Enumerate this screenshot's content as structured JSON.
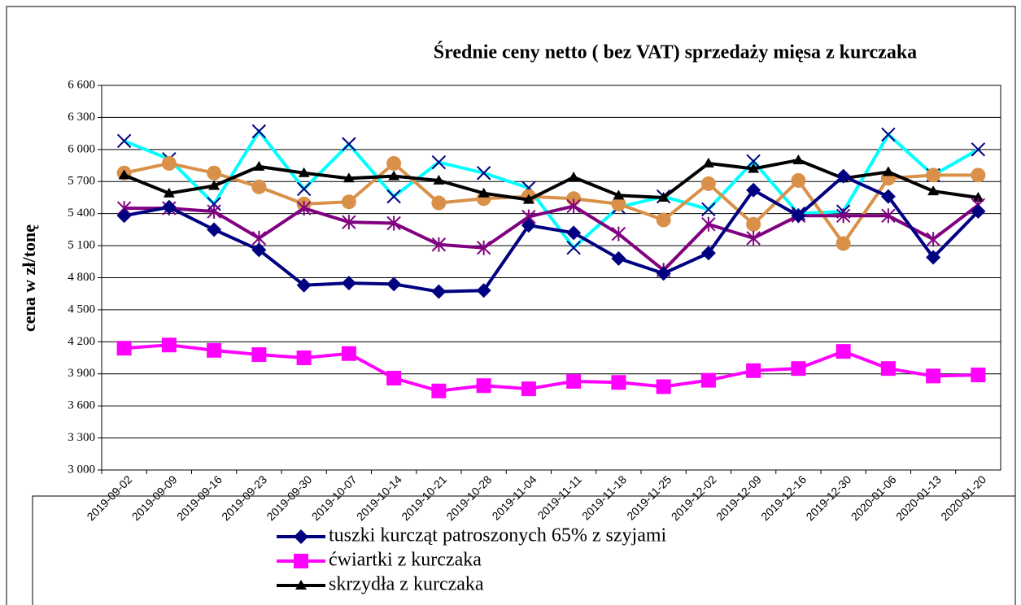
{
  "chart_data": {
    "type": "line",
    "title": "Średnie ceny netto ( bez VAT) sprzedaży mięsa z kurczaka",
    "y_label": "cena w zł/tonę",
    "categories": [
      "2019-09-02",
      "2019-09-09",
      "2019-09-16",
      "2019-09-23",
      "2019-09-30",
      "2019-10-07",
      "2019-10-14",
      "2019-10-21",
      "2019-10-28",
      "2019-11-04",
      "2019-11-11",
      "2019-11-18",
      "2019-11-25",
      "2019-12-02",
      "2019-12-09",
      "2019-12-16",
      "2019-12-30",
      "2020-01-06",
      "2020-01-13",
      "2020-01-20"
    ],
    "ylim": [
      3000,
      6600
    ],
    "yticks": [
      {
        "value": 3000,
        "label": "3 000"
      },
      {
        "value": 3300,
        "label": "3 300"
      },
      {
        "value": 3600,
        "label": "3 600"
      },
      {
        "value": 3900,
        "label": "3 900"
      },
      {
        "value": 4200,
        "label": "4 200"
      },
      {
        "value": 4500,
        "label": "4 500"
      },
      {
        "value": 4800,
        "label": "4 800"
      },
      {
        "value": 5100,
        "label": "5 100"
      },
      {
        "value": 5400,
        "label": "5 400"
      },
      {
        "value": 5700,
        "label": "5 700"
      },
      {
        "value": 6000,
        "label": "6 000"
      },
      {
        "value": 6300,
        "label": "6 300"
      },
      {
        "value": 6600,
        "label": "6 600"
      }
    ],
    "grid": true,
    "series": [
      {
        "color": "#000080",
        "marker": "cross",
        "values": [
          6080,
          5910,
          5490,
          6170,
          5630,
          6050,
          5560,
          5880,
          5780,
          5640,
          5080,
          5460,
          5560,
          5440,
          5890,
          5400,
          5420,
          6140,
          5760,
          6000
        ],
        "line_color": "#00ffff"
      },
      {
        "color": "#d9914a",
        "marker": "circle",
        "values": [
          5780,
          5870,
          5780,
          5650,
          5490,
          5510,
          5870,
          5500,
          5540,
          5560,
          5540,
          5490,
          5340,
          5680,
          5300,
          5710,
          5120,
          5730,
          5760,
          5760
        ]
      },
      {
        "color": "#000000",
        "marker": "triangle",
        "name": "skrzydła z kurczaka",
        "values": [
          5760,
          5590,
          5660,
          5840,
          5780,
          5730,
          5750,
          5710,
          5590,
          5530,
          5740,
          5570,
          5550,
          5870,
          5820,
          5900,
          5730,
          5790,
          5610,
          5550
        ]
      },
      {
        "color": "#800080",
        "marker": "star",
        "values": [
          5450,
          5450,
          5420,
          5170,
          5450,
          5320,
          5310,
          5110,
          5080,
          5370,
          5470,
          5210,
          4870,
          5300,
          5170,
          5380,
          5380,
          5380,
          5160,
          5480
        ]
      },
      {
        "color": "#000080",
        "marker": "diamond",
        "name": "tuszki kurcząt patroszonych 65% z szyjami",
        "values": [
          5380,
          5460,
          5250,
          5060,
          4730,
          4750,
          4740,
          4670,
          4680,
          5290,
          5220,
          4980,
          4840,
          5030,
          5620,
          5380,
          5750,
          5560,
          4990,
          5420
        ]
      },
      {
        "color": "#ff00ff",
        "marker": "square",
        "name": "ćwiartki z kurczaka",
        "values": [
          4140,
          4170,
          4120,
          4080,
          4050,
          4090,
          3860,
          3740,
          3790,
          3760,
          3830,
          3820,
          3780,
          3840,
          3930,
          3950,
          4110,
          3950,
          3880,
          3890
        ]
      }
    ]
  }
}
